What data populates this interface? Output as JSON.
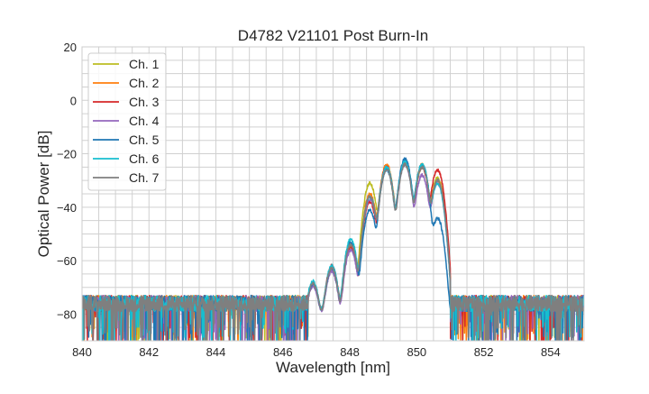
{
  "chart_data": {
    "type": "line",
    "title": "D4782 V21101 Post Burn-In",
    "xlabel": "Wavelength [nm]",
    "ylabel": "Optical Power [dB]",
    "xlim": [
      840,
      855
    ],
    "ylim": [
      -90,
      20
    ],
    "xticks": [
      840,
      842,
      844,
      846,
      848,
      850,
      852,
      854
    ],
    "yticks": [
      20,
      0,
      -20,
      -40,
      -60,
      -80
    ],
    "grid": true,
    "legend_position": "top-left",
    "noise_floor_db": -76,
    "peak_wavelengths": [
      846.9,
      847.46,
      848.03,
      848.6,
      849.1,
      849.65,
      850.16,
      850.62
    ],
    "series": [
      {
        "name": "Ch. 1",
        "color": "#bcbd22",
        "peaks_db": [
          -69,
          -63,
          -54,
          -31,
          -25,
          -23,
          -25,
          -29
        ]
      },
      {
        "name": "Ch. 2",
        "color": "#ff7f0e",
        "peaks_db": [
          -69,
          -63,
          -55,
          -35,
          -24,
          -23,
          -24,
          -30
        ]
      },
      {
        "name": "Ch. 3",
        "color": "#d62728",
        "peaks_db": [
          -69,
          -62,
          -55,
          -38,
          -25,
          -23,
          -25,
          -26
        ]
      },
      {
        "name": "Ch. 4",
        "color": "#9467bd",
        "peaks_db": [
          -70,
          -64,
          -56,
          -37,
          -25,
          -24,
          -28,
          -31
        ]
      },
      {
        "name": "Ch. 5",
        "color": "#1f77b4",
        "peaks_db": [
          -69,
          -63,
          -53,
          -41,
          -26,
          -22,
          -24,
          -44
        ]
      },
      {
        "name": "Ch. 6",
        "color": "#17becf",
        "peaks_db": [
          -68,
          -62,
          -52,
          -36,
          -25,
          -23,
          -24,
          -31
        ]
      },
      {
        "name": "Ch. 7",
        "color": "#7f7f7f",
        "peaks_db": [
          -69,
          -63,
          -54,
          -36,
          -26,
          -24,
          -25,
          -30
        ]
      }
    ]
  }
}
